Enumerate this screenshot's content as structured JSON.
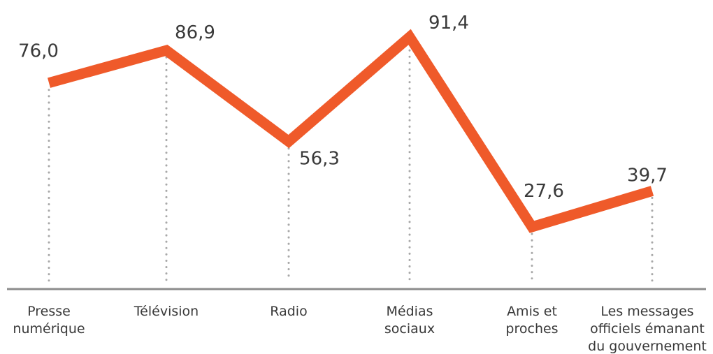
{
  "chart_data": {
    "type": "line",
    "categories": [
      [
        "Presse",
        "numérique"
      ],
      [
        "Télévision"
      ],
      [
        "Radio"
      ],
      [
        "Médias",
        "sociaux"
      ],
      [
        "Amis et",
        "proches"
      ],
      [
        "Les messages",
        "officiels émanant",
        "du gouvernement"
      ]
    ],
    "values": [
      76.0,
      86.9,
      56.3,
      91.4,
      27.6,
      39.7
    ],
    "value_labels": [
      "76,0",
      "86,9",
      "56,3",
      "91,4",
      "27,6",
      "39,7"
    ],
    "title": "",
    "xlabel": "",
    "ylabel": "",
    "grid": false,
    "drop_lines": "dotted",
    "colors": {
      "line": "#ef5a2a",
      "drop_line": "#a8a8a8",
      "axis": "#8c8c8c",
      "text": "#3a3a3a"
    }
  }
}
